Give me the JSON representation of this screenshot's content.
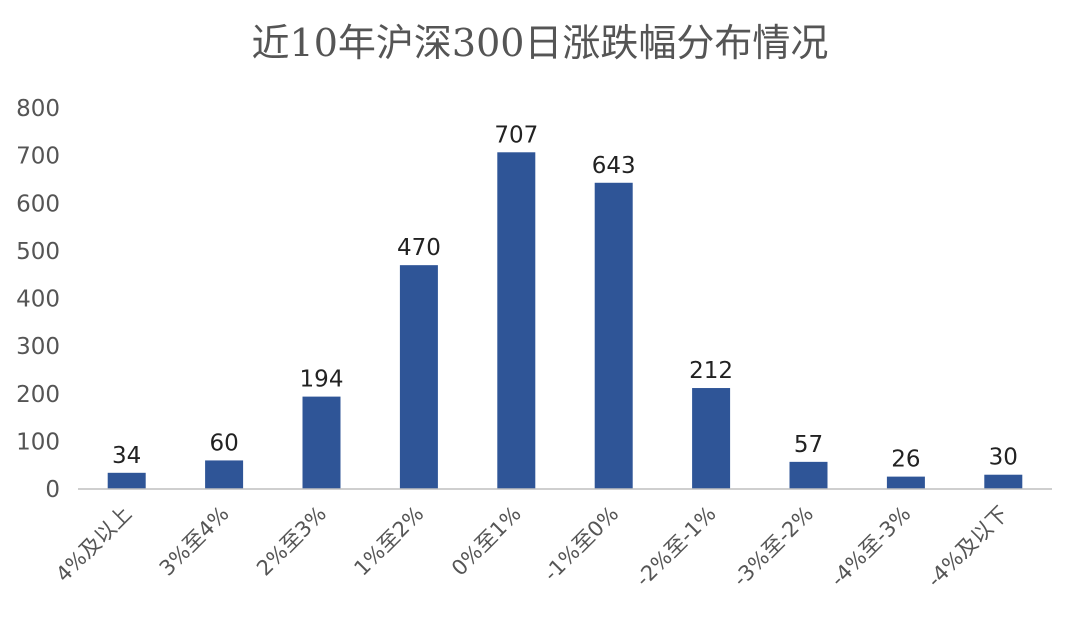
{
  "chart_data": {
    "type": "bar",
    "title": "近10年沪深300日涨跌幅分布情况",
    "xlabel": "",
    "ylabel": "",
    "categories": [
      "4%及以上",
      "3%至4%",
      "2%至3%",
      "1%至2%",
      "0%至1%",
      "-1%至0%",
      "-2%至-1%",
      "-3%至-2%",
      "-4%至-3%",
      "-4%及以下"
    ],
    "values": [
      34,
      60,
      194,
      470,
      707,
      643,
      212,
      57,
      26,
      30
    ],
    "ylim": [
      0,
      800
    ],
    "yticks": [
      0,
      100,
      200,
      300,
      400,
      500,
      600,
      700,
      800
    ],
    "grid": false,
    "legend": "none",
    "bar_color": "#2f5597",
    "data_labels": true
  }
}
